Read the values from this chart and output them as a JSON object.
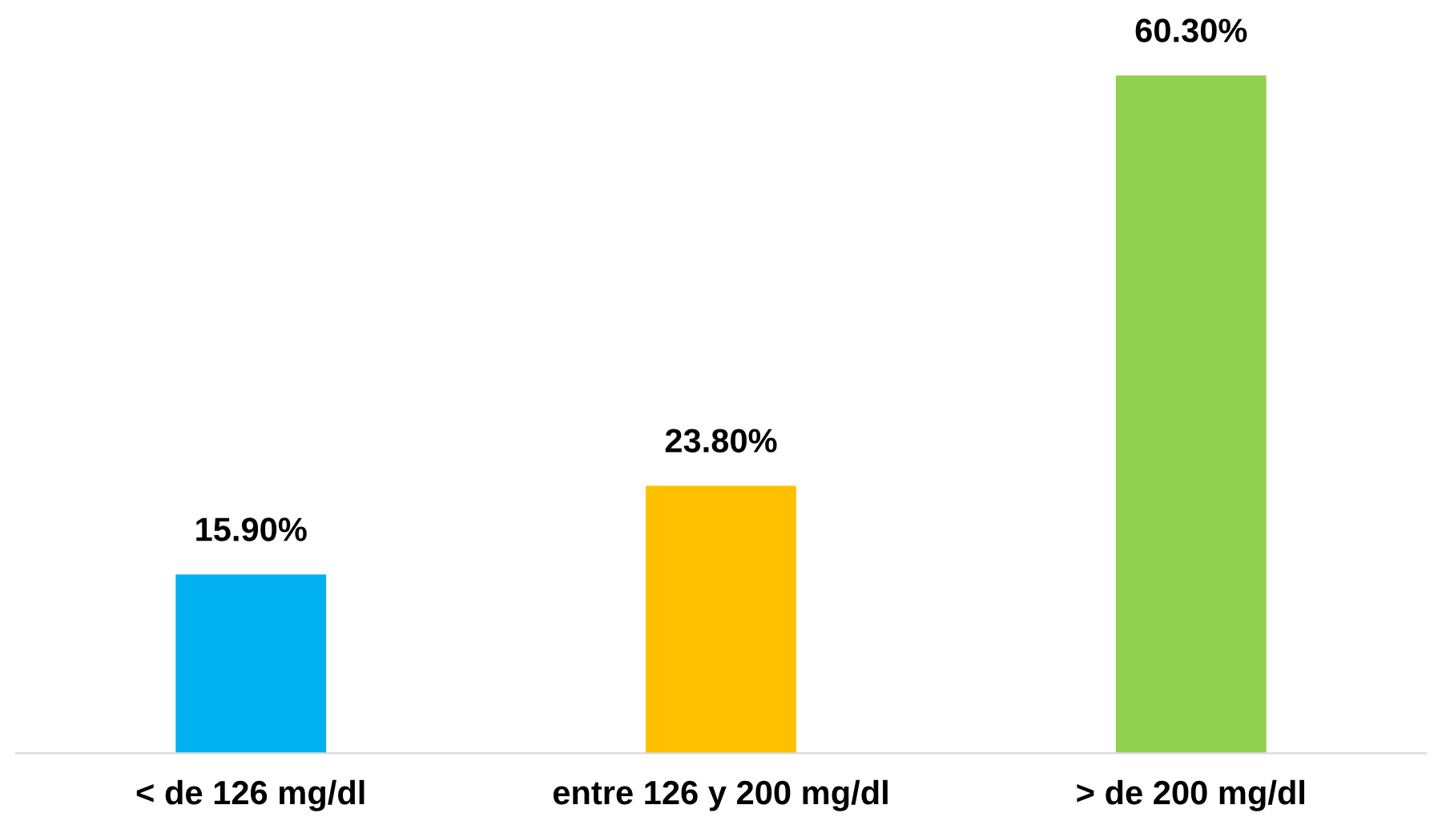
{
  "chart_data": {
    "type": "bar",
    "categories": [
      "< de 126 mg/dl",
      "entre 126 y 200 mg/dl",
      "> de 200 mg/dl"
    ],
    "values": [
      15.9,
      23.8,
      60.3
    ],
    "colors": [
      "#00b0f0",
      "#ffc000",
      "#92d050"
    ],
    "value_labels": [
      "15.90%",
      "23.80%",
      "60.30%"
    ],
    "grid": false,
    "legend": false
  }
}
